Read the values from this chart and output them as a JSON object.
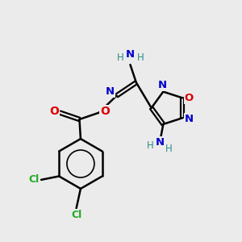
{
  "background_color": "#ebebeb",
  "atom_colors": {
    "C": "#000000",
    "H": "#2e8b8b",
    "N": "#0000cd",
    "O": "#dd0000",
    "Cl": "#22aa22",
    "bond": "#000000"
  },
  "figsize": [
    3.0,
    3.0
  ],
  "dpi": 100
}
